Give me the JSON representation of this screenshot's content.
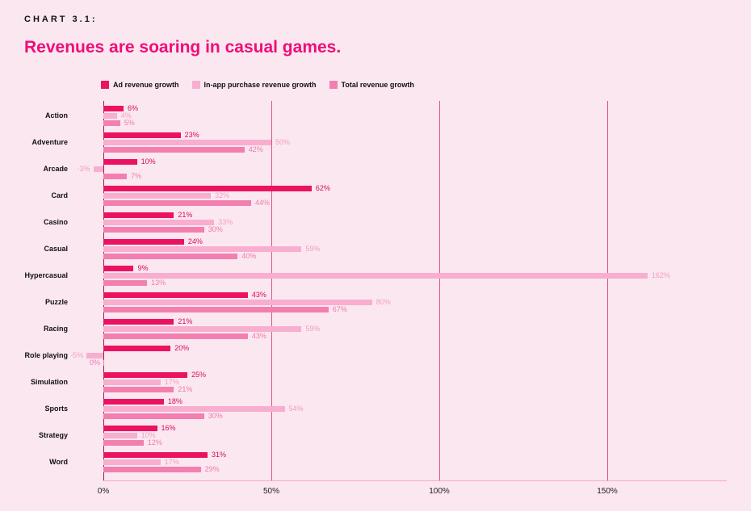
{
  "header": {
    "eyebrow": "CHART 3.1:",
    "title": "Revenues are soaring in casual games."
  },
  "colors": {
    "background": "#FBE7F0",
    "title_accent": "#F00D77",
    "ad_series": "#EB1260",
    "inapp_series": "#F8AECE",
    "total_series": "#F27FB0",
    "gridline": "#E2537F",
    "zero_line": "#A6133F",
    "baseline": "#F5A9C9",
    "bottom_strip": "#FFFFFF"
  },
  "chart_data": {
    "type": "bar",
    "orientation": "horizontal",
    "title": "Revenues are soaring in casual games.",
    "xlabel": "",
    "ylabel": "",
    "legend_position": "top",
    "grid": "vertical",
    "xlim": [
      -10,
      170
    ],
    "x_ticks": [
      "0%",
      "50%",
      "100%",
      "150%"
    ],
    "x_tick_values": [
      0,
      50,
      100,
      150
    ],
    "categories": [
      "Action",
      "Adventure",
      "Arcade",
      "Card",
      "Casino",
      "Casual",
      "Hypercasual",
      "Puzzle",
      "Racing",
      "Role playing",
      "Simulation",
      "Sports",
      "Strategy",
      "Word"
    ],
    "series": [
      {
        "name": "Ad revenue growth",
        "color": "#EB1260",
        "label_color": "#D50A5E",
        "values": [
          6,
          23,
          10,
          62,
          21,
          24,
          9,
          43,
          21,
          20,
          25,
          18,
          16,
          31
        ]
      },
      {
        "name": "In-app purchase revenue growth",
        "color": "#F8AECE",
        "label_color": "#F49DC4",
        "values": [
          4,
          50,
          -3,
          32,
          33,
          59,
          162,
          80,
          59,
          -5,
          17,
          54,
          10,
          17
        ]
      },
      {
        "name": "Total revenue growth",
        "color": "#F27FB0",
        "label_color": "#EF79AC",
        "values": [
          5,
          42,
          7,
          44,
          30,
          40,
          13,
          67,
          43,
          0,
          21,
          30,
          12,
          29
        ]
      }
    ],
    "value_suffix": "%"
  }
}
